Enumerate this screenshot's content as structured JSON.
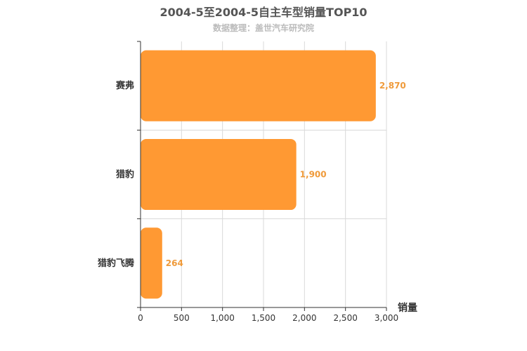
{
  "title": "2004-5至2004-5自主车型销量TOP10",
  "subtitle": "数据整理：盖世汽车研究院",
  "chart_data": {
    "type": "bar",
    "orientation": "horizontal",
    "categories": [
      "赛弗",
      "猎豹",
      "猎豹飞腾"
    ],
    "values": [
      2870,
      1900,
      264
    ],
    "value_labels": [
      "2,870",
      "1,900",
      "264"
    ],
    "xlabel": "销量",
    "ylabel": "",
    "xlim": [
      0,
      3000
    ],
    "ticks": [
      0,
      500,
      1000,
      1500,
      2000,
      2500,
      3000
    ],
    "tick_labels": [
      "0",
      "500",
      "1,000",
      "1,500",
      "2,000",
      "2,500",
      "3,000"
    ],
    "grid": true,
    "bar_color": "#ff9933",
    "label_color": "#ef9a3a"
  }
}
